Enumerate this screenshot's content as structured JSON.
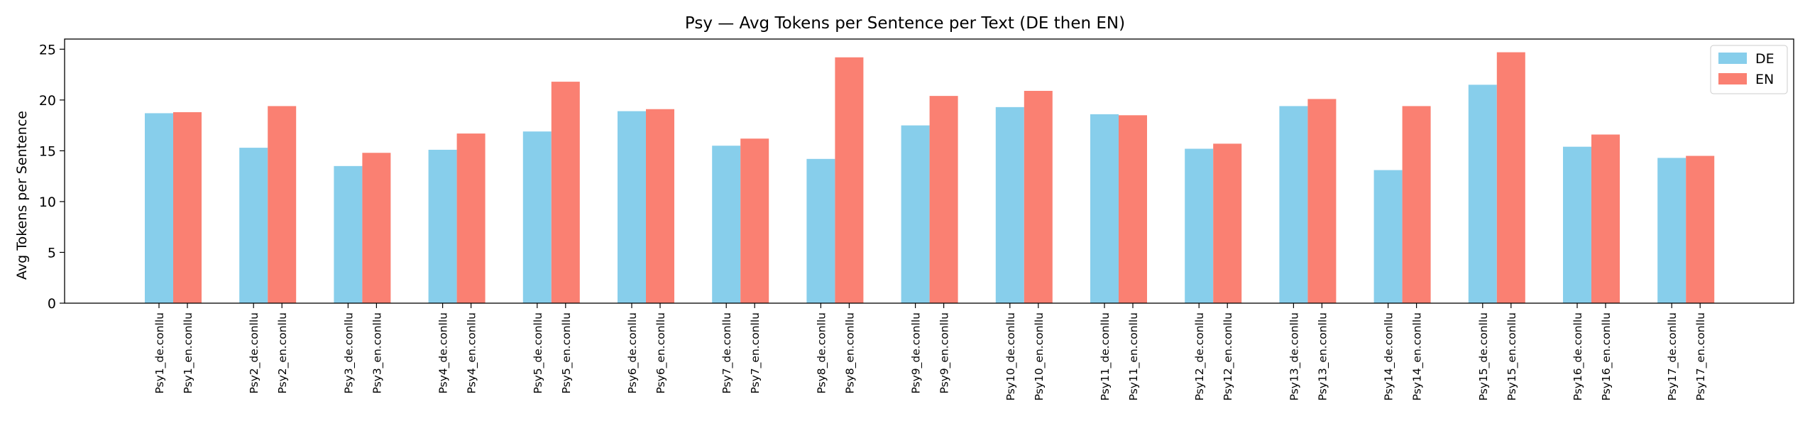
{
  "chart_data": {
    "type": "bar",
    "title": "Psy — Avg Tokens per Sentence per Text (DE then EN)",
    "xlabel": "",
    "ylabel": "Avg Tokens per Sentence",
    "ylim": [
      0,
      26
    ],
    "yticks": [
      0,
      5,
      10,
      15,
      20,
      25
    ],
    "grid": false,
    "legend_position": "top-right",
    "series": [
      {
        "name": "DE",
        "color": "#87ceeb",
        "labels": [
          "Psy1_de.conllu",
          "Psy2_de.conllu",
          "Psy3_de.conllu",
          "Psy4_de.conllu",
          "Psy5_de.conllu",
          "Psy6_de.conllu",
          "Psy7_de.conllu",
          "Psy8_de.conllu",
          "Psy9_de.conllu",
          "Psy10_de.conllu",
          "Psy11_de.conllu",
          "Psy12_de.conllu",
          "Psy13_de.conllu",
          "Psy14_de.conllu",
          "Psy15_de.conllu",
          "Psy16_de.conllu",
          "Psy17_de.conllu"
        ],
        "values": [
          18.7,
          15.3,
          13.5,
          15.1,
          16.9,
          18.9,
          15.5,
          14.2,
          17.5,
          19.3,
          18.6,
          15.2,
          19.4,
          13.1,
          21.5,
          15.4,
          14.3
        ]
      },
      {
        "name": "EN",
        "color": "#fa8072",
        "labels": [
          "Psy1_en.conllu",
          "Psy2_en.conllu",
          "Psy3_en.conllu",
          "Psy4_en.conllu",
          "Psy5_en.conllu",
          "Psy6_en.conllu",
          "Psy7_en.conllu",
          "Psy8_en.conllu",
          "Psy9_en.conllu",
          "Psy10_en.conllu",
          "Psy11_en.conllu",
          "Psy12_en.conllu",
          "Psy13_en.conllu",
          "Psy14_en.conllu",
          "Psy15_en.conllu",
          "Psy16_en.conllu",
          "Psy17_en.conllu"
        ],
        "values": [
          18.8,
          19.4,
          14.8,
          16.7,
          21.8,
          19.1,
          16.2,
          24.2,
          20.4,
          20.9,
          18.5,
          15.7,
          20.1,
          19.4,
          24.7,
          16.6,
          14.5
        ]
      }
    ]
  }
}
